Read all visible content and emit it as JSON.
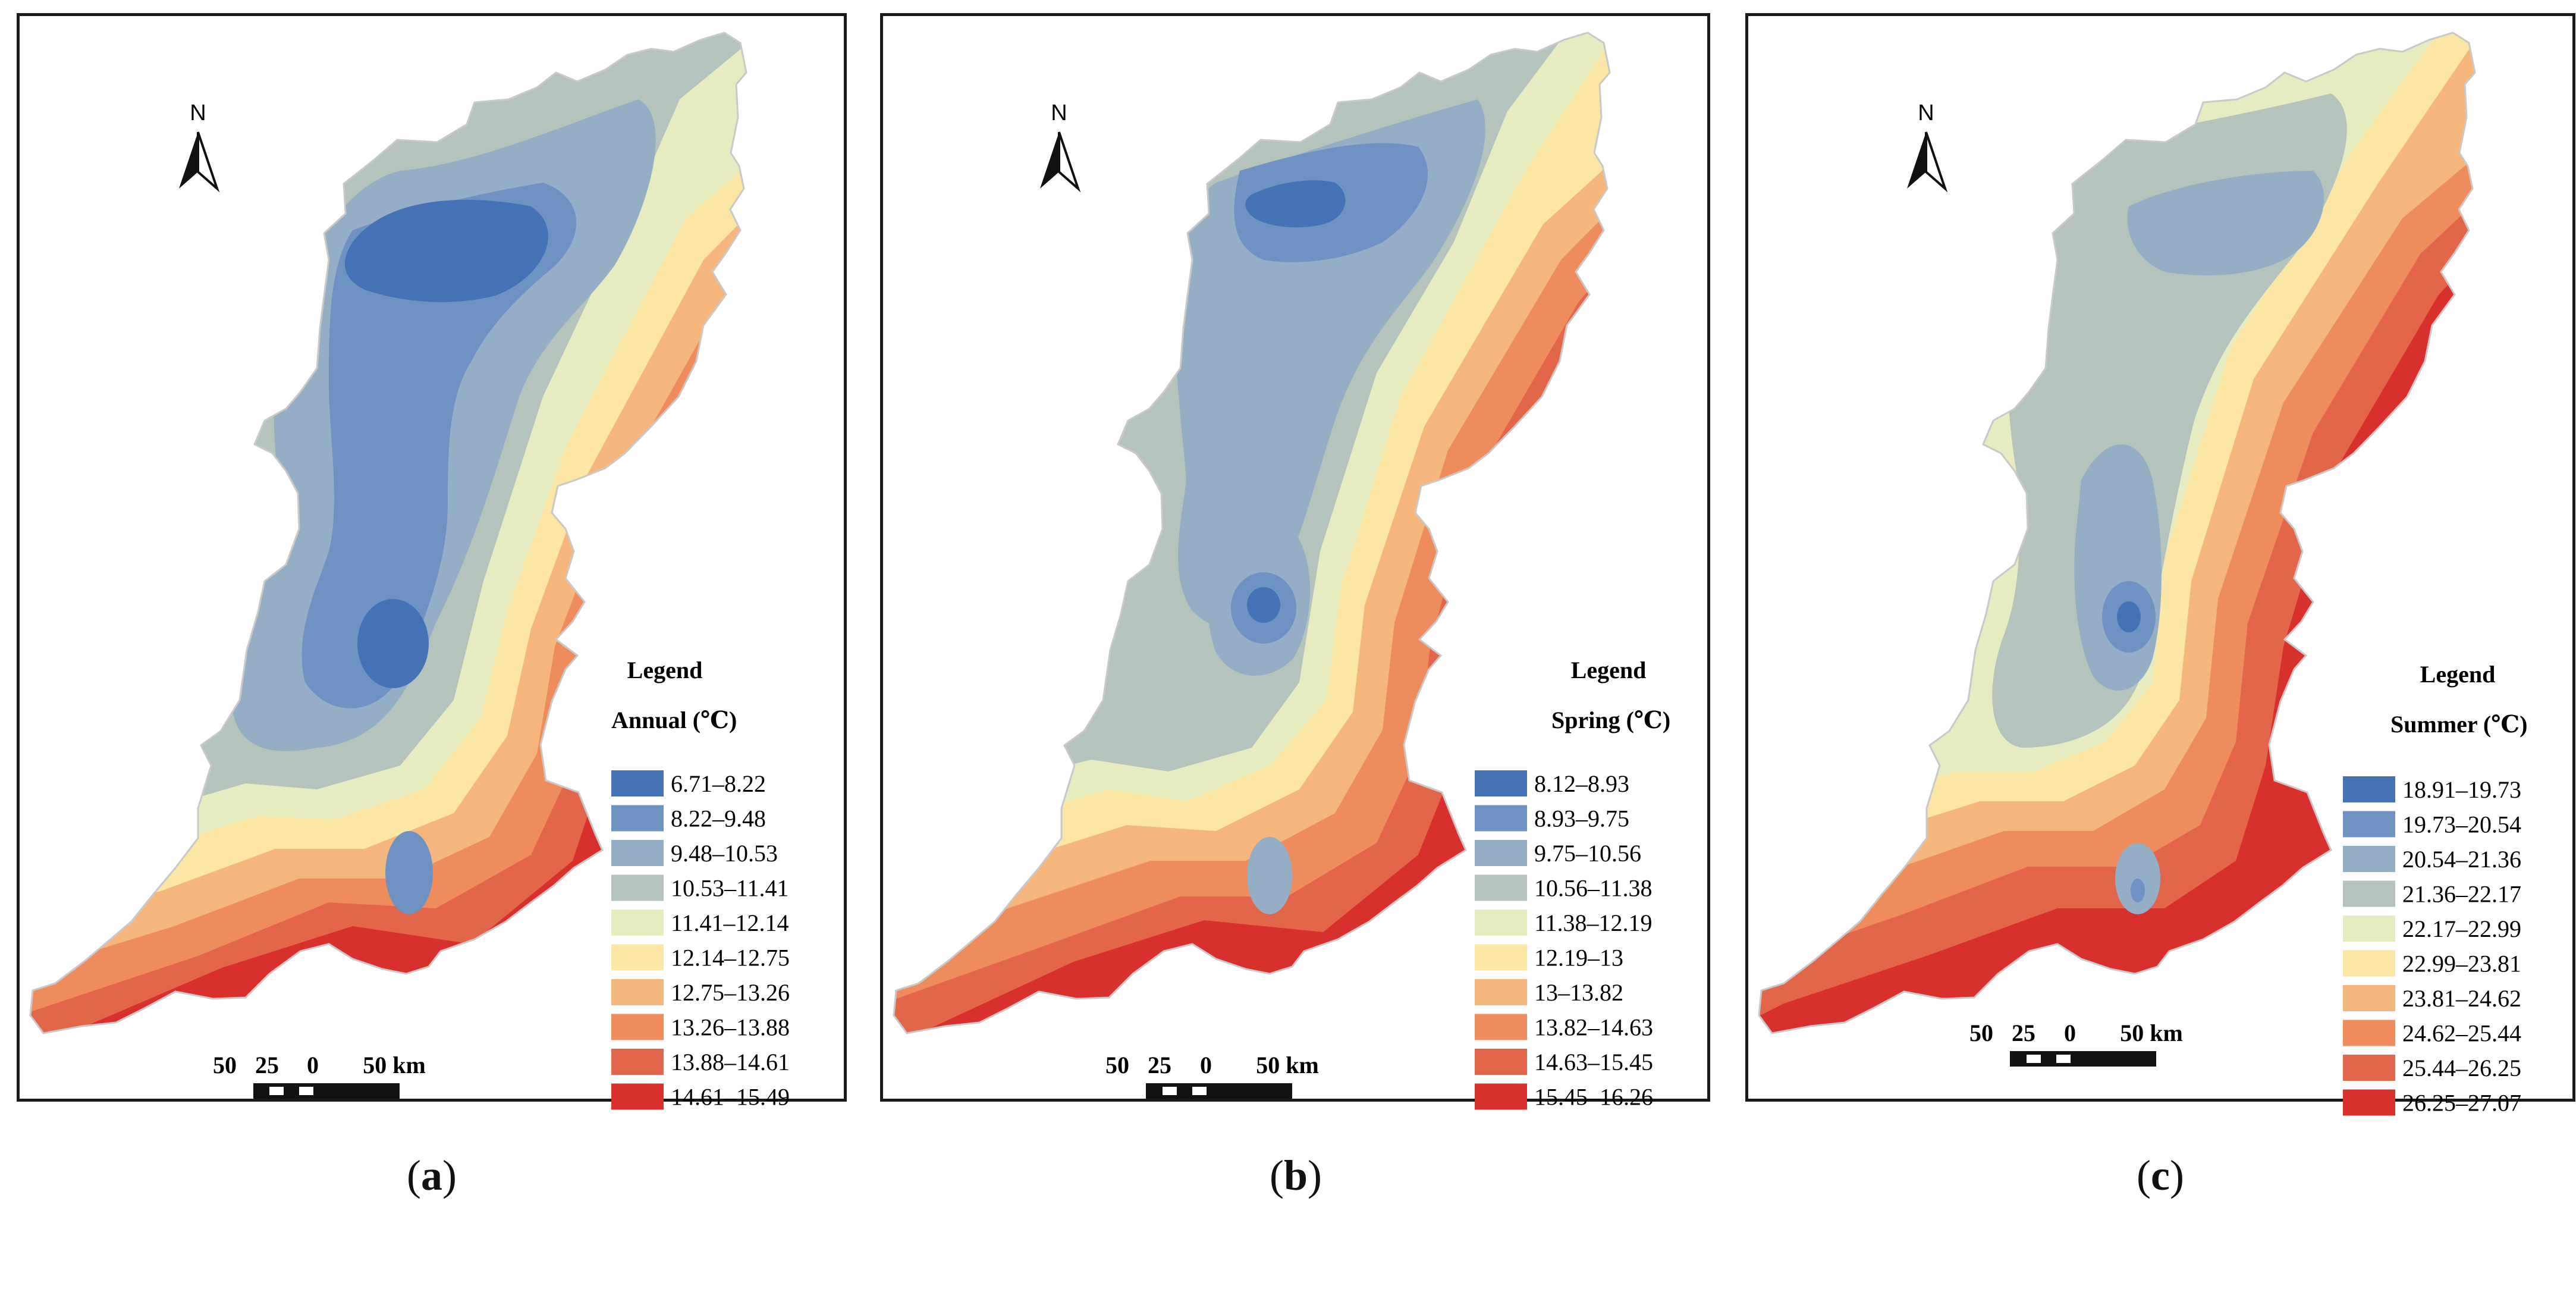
{
  "figure": {
    "north_label": "N",
    "legend_title": "Legend",
    "scale_label_1": "50",
    "scale_label_2": "25",
    "scale_label_3": "0",
    "scale_label_4": "50 km"
  },
  "colors": {
    "ramp": [
      "#4472b4",
      "#6e92c2",
      "#94aec6",
      "#b5c3bd",
      "#e7ecc0",
      "#fbe6a6",
      "#f5b67e",
      "#ef8c5e",
      "#e3664b",
      "#d7302d"
    ]
  },
  "panels": [
    {
      "id": "a",
      "caption_open": "(",
      "caption_letter": "a",
      "caption_close": ")",
      "legend_subtitle": "Annual (℃)",
      "classes": [
        "6.71–8.22",
        "8.22–9.48",
        "9.48–10.53",
        "10.53–11.41",
        "11.41–12.14",
        "12.14–12.75",
        "12.75–13.26",
        "13.26–13.88",
        "13.88–14.61",
        "14.61–15.49"
      ]
    },
    {
      "id": "b",
      "caption_open": "(",
      "caption_letter": "b",
      "caption_close": ")",
      "legend_subtitle": "Spring (℃)",
      "classes": [
        "8.12–8.93",
        "8.93–9.75",
        "9.75–10.56",
        "10.56–11.38",
        "11.38–12.19",
        "12.19–13",
        "13–13.82",
        "13.82–14.63",
        "14.63–15.45",
        "15.45–16.26"
      ]
    },
    {
      "id": "c",
      "caption_open": "(",
      "caption_letter": "c",
      "caption_close": ")",
      "legend_subtitle": "Summer (℃)",
      "classes": [
        "18.91–19.73",
        "19.73–20.54",
        "20.54–21.36",
        "21.36–22.17",
        "22.17–22.99",
        "22.99–23.81",
        "23.81–24.62",
        "24.62–25.44",
        "25.44–26.25",
        "26.25–27.07"
      ]
    }
  ]
}
